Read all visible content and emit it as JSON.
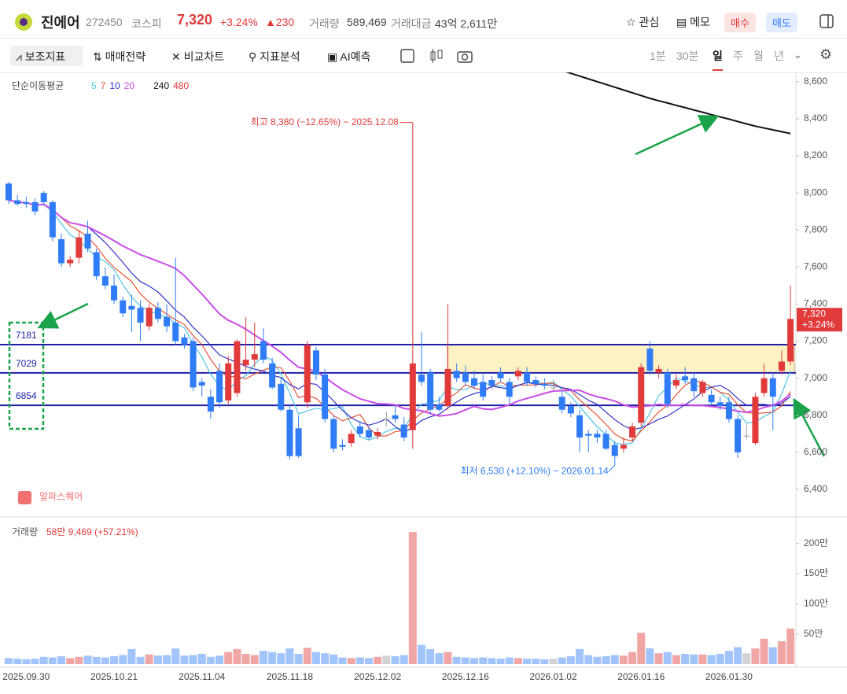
{
  "header": {
    "name": "진에어",
    "code": "272450",
    "market": "코스피",
    "price": "7,320",
    "change_pct": "+3.24%",
    "change": "▲230",
    "volume_label": "거래량",
    "volume": "589,469",
    "amount_label": "거래대금",
    "amount": "43억 2,611만",
    "watch": "관심",
    "memo": "메모",
    "buy": "매수",
    "sell": "매도"
  },
  "toolbar": {
    "tools": [
      "보조지표",
      "매매전략",
      "비교차트",
      "지표분석",
      "AI예측"
    ],
    "periods": [
      "1분",
      "30분",
      "일",
      "주",
      "월",
      "년"
    ],
    "active_period": "일"
  },
  "chart_data": {
    "type": "candlestick",
    "indicator_title": "단순이동평균",
    "moving_averages": [
      {
        "name": "5",
        "period": 5,
        "color": "#4fc3e6"
      },
      {
        "name": "7",
        "period": 7,
        "color": "#e8553a"
      },
      {
        "name": "10",
        "period": 10,
        "color": "#3434c8"
      },
      {
        "name": "20",
        "period": 20,
        "color": "#c94de6"
      },
      {
        "name": "240",
        "color": "#111111",
        "values": [
          null,
          null,
          null,
          null,
          null,
          null,
          null,
          null,
          null,
          null,
          null,
          null,
          null,
          null,
          null,
          null,
          null,
          null,
          null,
          null,
          null,
          null,
          null,
          null,
          null,
          null,
          null,
          null,
          null,
          null,
          null,
          null,
          null,
          null,
          null,
          null,
          null,
          null,
          null,
          null,
          null,
          null,
          null,
          null,
          null,
          null,
          null,
          null,
          null,
          null,
          null,
          null,
          null,
          null,
          null,
          null,
          null,
          null,
          null,
          null,
          null,
          null,
          null,
          8660,
          8645,
          8630,
          8615,
          8600,
          8585,
          8570,
          8555,
          8540,
          8525,
          8510,
          8497,
          8485,
          8472,
          8460,
          8447,
          8435,
          8422,
          8410,
          8398,
          8385,
          8372,
          8360,
          8350,
          8340,
          8330,
          8320
        ]
      },
      {
        "name": "480",
        "color": "#e03a3a"
      }
    ],
    "up_color": "#e03a3a",
    "down_color": "#2f7cf6",
    "neutral_color": "#9e9e9e",
    "categories": [
      null,
      null,
      "2025.09.30",
      null,
      null,
      null,
      null,
      null,
      null,
      null,
      null,
      null,
      "2025.10.21",
      null,
      null,
      null,
      null,
      null,
      null,
      null,
      null,
      null,
      "2025.11.04",
      null,
      null,
      null,
      null,
      null,
      null,
      null,
      null,
      null,
      "2025.11.18",
      null,
      null,
      null,
      null,
      null,
      null,
      null,
      null,
      null,
      "2025.12.02",
      null,
      null,
      null,
      null,
      null,
      null,
      null,
      null,
      null,
      "2025.12.16",
      null,
      null,
      null,
      null,
      null,
      null,
      null,
      null,
      null,
      "2026.01.02",
      null,
      null,
      null,
      null,
      null,
      null,
      null,
      null,
      null,
      "2026.01.16",
      null,
      null,
      null,
      null,
      null,
      null,
      null,
      null,
      null,
      "2026.01.30",
      null,
      null,
      null,
      null,
      null,
      null,
      null
    ],
    "ohlc": [
      [
        8050,
        8060,
        7940,
        7960
      ],
      [
        7960,
        7990,
        7930,
        7940
      ],
      [
        7950,
        7980,
        7920,
        7940
      ],
      [
        7950,
        7970,
        7880,
        7900
      ],
      [
        8000,
        8010,
        7930,
        7950
      ],
      [
        7950,
        7960,
        7740,
        7760
      ],
      [
        7750,
        7780,
        7600,
        7620
      ],
      [
        7620,
        7660,
        7600,
        7640
      ],
      [
        7650,
        7800,
        7620,
        7760
      ],
      [
        7780,
        7850,
        7680,
        7700
      ],
      [
        7680,
        7700,
        7530,
        7550
      ],
      [
        7550,
        7600,
        7480,
        7500
      ],
      [
        7500,
        7560,
        7400,
        7420
      ],
      [
        7420,
        7440,
        7330,
        7350
      ],
      [
        7390,
        7450,
        7250,
        7370
      ],
      [
        7380,
        7420,
        7200,
        7300
      ],
      [
        7280,
        7400,
        7260,
        7380
      ],
      [
        7380,
        7410,
        7300,
        7320
      ],
      [
        7330,
        7400,
        7250,
        7280
      ],
      [
        7300,
        7650,
        7180,
        7200
      ],
      [
        7220,
        7240,
        7160,
        7180
      ],
      [
        7200,
        7220,
        6930,
        6950
      ],
      [
        6980,
        7000,
        6900,
        6960
      ],
      [
        6900,
        6940,
        6780,
        6820
      ],
      [
        7040,
        7080,
        6840,
        6870
      ],
      [
        6880,
        7120,
        6860,
        7080
      ],
      [
        6920,
        7210,
        6900,
        7200
      ],
      [
        7070,
        7330,
        7040,
        7100
      ],
      [
        7100,
        7300,
        7060,
        7130
      ],
      [
        7200,
        7270,
        7080,
        7100
      ],
      [
        7080,
        7110,
        6940,
        6950
      ],
      [
        6970,
        7000,
        6820,
        6830
      ],
      [
        6830,
        6860,
        6560,
        6580
      ],
      [
        6730,
        6800,
        6570,
        6580
      ],
      [
        6870,
        7200,
        6840,
        7180
      ],
      [
        7150,
        7170,
        6990,
        7020
      ],
      [
        7020,
        7050,
        6760,
        6780
      ],
      [
        6780,
        6800,
        6600,
        6620
      ],
      [
        6640,
        6670,
        6610,
        6630
      ],
      [
        6650,
        6720,
        6630,
        6700
      ],
      [
        6740,
        6770,
        6680,
        6700
      ],
      [
        6720,
        6740,
        6670,
        6680
      ],
      [
        6690,
        6730,
        6670,
        6710
      ],
      [
        6780,
        6820,
        6740,
        6780
      ],
      [
        6800,
        6850,
        6760,
        6780
      ],
      [
        6750,
        6790,
        6660,
        6680
      ],
      [
        6720,
        8380,
        6620,
        7080
      ],
      [
        7020,
        7250,
        6960,
        6980
      ],
      [
        7030,
        7050,
        6810,
        6830
      ],
      [
        6860,
        6900,
        6820,
        6830
      ],
      [
        6850,
        7400,
        6830,
        7050
      ],
      [
        7040,
        7080,
        6980,
        7000
      ],
      [
        7030,
        7070,
        6960,
        6980
      ],
      [
        7000,
        7040,
        6940,
        6960
      ],
      [
        6980,
        7020,
        6880,
        6900
      ],
      [
        6990,
        7010,
        6940,
        6960
      ],
      [
        7030,
        7060,
        6980,
        7000
      ],
      [
        6980,
        7000,
        6860,
        6900
      ],
      [
        7010,
        7060,
        6990,
        7040
      ],
      [
        7030,
        7060,
        6960,
        6980
      ],
      [
        6990,
        7010,
        6950,
        6970
      ],
      [
        6970,
        7000,
        6940,
        6960
      ],
      [
        6950,
        6990,
        6930,
        6950
      ],
      [
        6900,
        6930,
        6810,
        6830
      ],
      [
        6850,
        6870,
        6790,
        6810
      ],
      [
        6800,
        6830,
        6600,
        6680
      ],
      [
        6700,
        6720,
        6600,
        6690
      ],
      [
        6700,
        6720,
        6650,
        6680
      ],
      [
        6700,
        6720,
        6610,
        6620
      ],
      [
        6640,
        6660,
        6530,
        6580
      ],
      [
        6620,
        6680,
        6600,
        6640
      ],
      [
        6680,
        6760,
        6660,
        6740
      ],
      [
        6760,
        7080,
        6740,
        7060
      ],
      [
        7160,
        7200,
        7020,
        7040
      ],
      [
        7030,
        7070,
        7000,
        7050
      ],
      [
        7030,
        7050,
        6840,
        6860
      ],
      [
        6960,
        7020,
        6940,
        6990
      ],
      [
        7010,
        7060,
        6970,
        6990
      ],
      [
        7000,
        7030,
        6900,
        6930
      ],
      [
        6920,
        6990,
        6900,
        6980
      ],
      [
        6910,
        6940,
        6850,
        6870
      ],
      [
        6870,
        6900,
        6830,
        6850
      ],
      [
        6870,
        6900,
        6760,
        6780
      ],
      [
        6780,
        6800,
        6570,
        6600
      ],
      [
        6690,
        6750,
        6670,
        6690
      ],
      [
        6650,
        6920,
        6640,
        6900
      ],
      [
        6920,
        7080,
        6900,
        7000
      ],
      [
        7000,
        7030,
        6720,
        6900
      ],
      [
        7040,
        7150,
        7020,
        7090
      ],
      [
        7090,
        7500,
        7070,
        7320
      ]
    ],
    "ylim": [
      6260,
      8650
    ],
    "yticks": [
      {
        "value": 6400,
        "label": "6,400"
      },
      {
        "value": 6600,
        "label": "6,600"
      },
      {
        "value": 6800,
        "label": "6,800"
      },
      {
        "value": 7000,
        "label": "7,000"
      },
      {
        "value": 7200,
        "label": "7,200"
      },
      {
        "value": 7400,
        "label": "7,400"
      },
      {
        "value": 7600,
        "label": "7,600"
      },
      {
        "value": 7800,
        "label": "7,800"
      },
      {
        "value": 8000,
        "label": "8,000"
      },
      {
        "value": 8200,
        "label": "8,200"
      },
      {
        "value": 8400,
        "label": "8,400"
      },
      {
        "value": 8600,
        "label": "8,600"
      }
    ],
    "levels": [
      7181,
      7029,
      6854
    ],
    "level_color": "#1f1fa8",
    "zone_color": "#fdf2c4",
    "annotations": {
      "high": "최고 8,380 (−12.65%) − 2025.12.08",
      "low": "최저 6,530 (+12.10%) − 2026.01.14"
    },
    "high_index": 46,
    "low_index": 69,
    "watermark": "알파스퀘어",
    "volume_title": "거래량",
    "volume_text": "58만 9,469 (+57.21%)",
    "volume": [
      100000,
      90000,
      80000,
      90000,
      120000,
      110000,
      130000,
      100000,
      120000,
      140000,
      120000,
      110000,
      130000,
      150000,
      250000,
      120000,
      160000,
      140000,
      150000,
      260000,
      140000,
      150000,
      170000,
      120000,
      140000,
      200000,
      250000,
      170000,
      150000,
      220000,
      200000,
      180000,
      260000,
      170000,
      270000,
      200000,
      180000,
      160000,
      110000,
      100000,
      110000,
      100000,
      120000,
      140000,
      130000,
      150000,
      2190000,
      320000,
      250000,
      180000,
      200000,
      120000,
      110000,
      100000,
      110000,
      100000,
      90000,
      110000,
      100000,
      90000,
      90000,
      80000,
      90000,
      110000,
      130000,
      250000,
      150000,
      120000,
      130000,
      150000,
      140000,
      200000,
      520000,
      260000,
      180000,
      200000,
      150000,
      170000,
      160000,
      160000,
      150000,
      170000,
      220000,
      280000,
      180000,
      260000,
      420000,
      280000,
      380000,
      589469
    ],
    "vol_ylim": [
      0,
      2400000
    ],
    "vol_ticks": [
      {
        "value": 500000,
        "label": "50만"
      },
      {
        "value": 1000000,
        "label": "100만"
      },
      {
        "value": 1500000,
        "label": "150만"
      },
      {
        "value": 2000000,
        "label": "200만"
      }
    ]
  }
}
